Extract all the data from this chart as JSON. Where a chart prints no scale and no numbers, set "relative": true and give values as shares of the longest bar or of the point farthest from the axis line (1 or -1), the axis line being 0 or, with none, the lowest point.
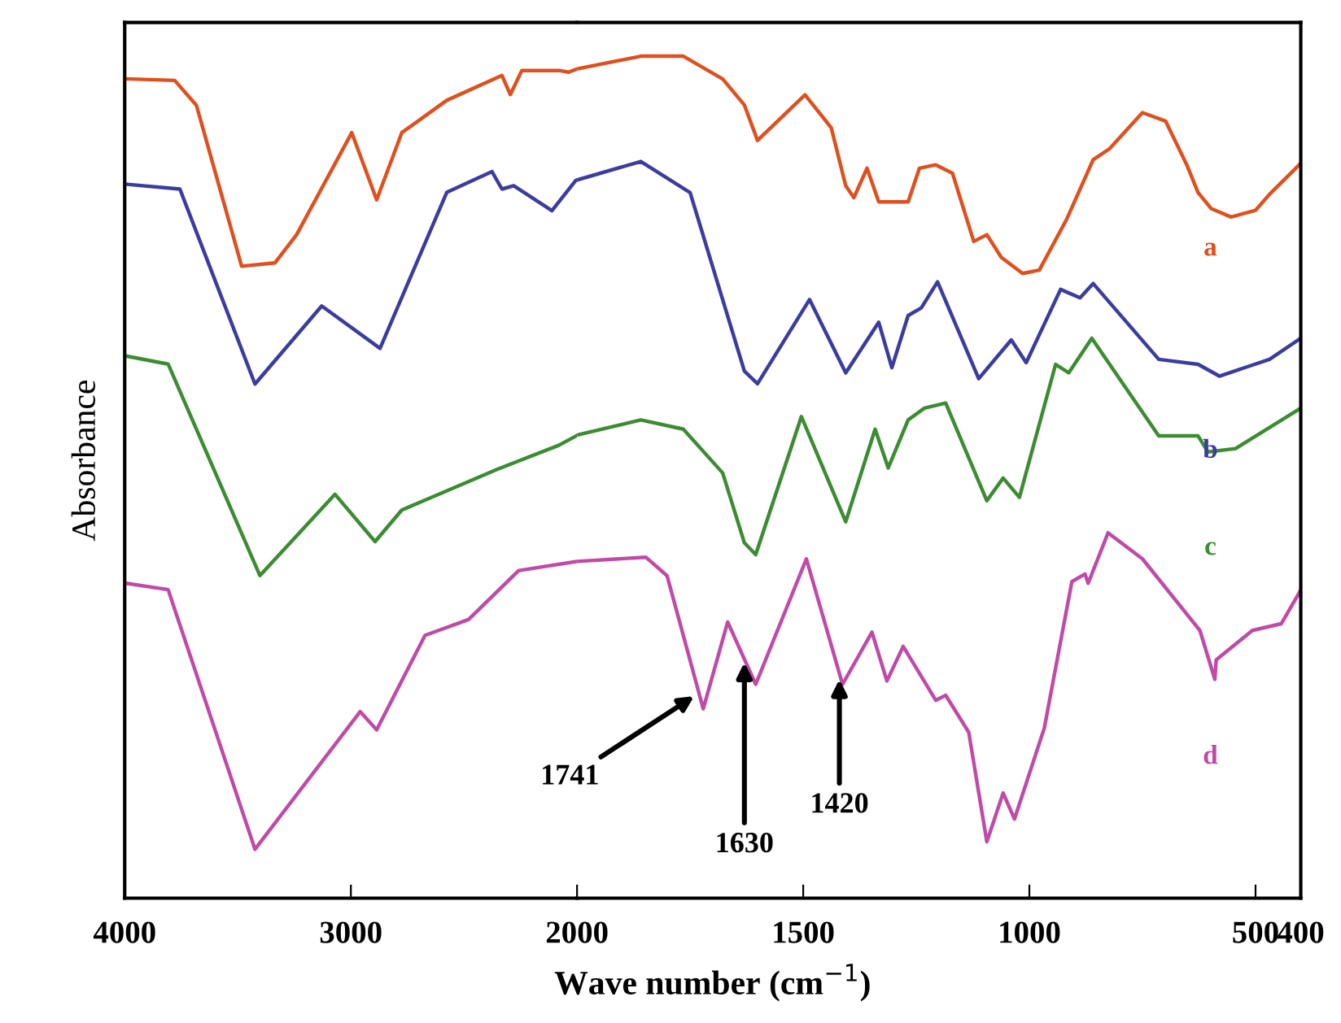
{
  "chart_data": [
    {
      "type": "line",
      "relative": true,
      "ylabel": "Absorbance",
      "xlim": [
        4000,
        2000
      ],
      "xticks": [
        4000,
        3000
      ],
      "grid": false,
      "line_style": "solid",
      "marker": "none",
      "series": [
        {
          "color": "#e0501e",
          "x": [
            4000,
            3779,
            3683,
            3483,
            3336,
            3240,
            2996,
            2886,
            2775,
            2576,
            2332,
            2295,
            2244,
            2081,
            2037,
            2000
          ],
          "values": [
            0.988,
            0.986,
            0.956,
            0.762,
            0.766,
            0.8,
            0.923,
            0.842,
            0.923,
            0.962,
            0.992,
            0.969,
            0.998,
            0.998,
            0.996,
            1.0
          ]
        },
        {
          "color": "#3c3ca0",
          "x": [
            4000,
            3756,
            3424,
            3129,
            2871,
            2576,
            2376,
            2332,
            2280,
            2111,
            2007,
            2000
          ],
          "values": [
            0.861,
            0.855,
            0.62,
            0.714,
            0.663,
            0.851,
            0.876,
            0.855,
            0.859,
            0.829,
            0.865,
            0.866
          ]
        },
        {
          "color": "#3c8c32",
          "x": [
            4000,
            3808,
            3402,
            3070,
            2893,
            2775,
            2354,
            2081,
            2000
          ],
          "values": [
            0.654,
            0.644,
            0.389,
            0.487,
            0.43,
            0.468,
            0.517,
            0.546,
            0.558
          ]
        },
        {
          "color": "#c04aa8",
          "x": [
            4000,
            3808,
            3424,
            2959,
            2886,
            2672,
            2480,
            2258,
            2000
          ],
          "values": [
            0.38,
            0.372,
            0.059,
            0.225,
            0.203,
            0.317,
            0.336,
            0.395,
            0.406
          ]
        }
      ]
    },
    {
      "type": "line",
      "relative": true,
      "xlabel": "Wave number (cm$^{−1}$)",
      "xlim": [
        2000,
        400
      ],
      "xticks": [
        2000,
        1500,
        1000,
        500,
        400
      ],
      "grid": false,
      "line_style": "solid",
      "marker": "none",
      "series": [
        {
          "name": "a",
          "color": "#e0501e",
          "x": [
            2000,
            1859,
            1765,
            1678,
            1630,
            1601,
            1496,
            1438,
            1406,
            1388,
            1359,
            1333,
            1268,
            1243,
            1207,
            1170,
            1123,
            1094,
            1062,
            1015,
            978,
            917,
            859,
            823,
            750,
            699,
            652,
            627,
            598,
            554,
            500,
            469,
            411,
            400
          ],
          "values": [
            0.985,
            1.0,
            1.0,
            0.973,
            0.942,
            0.9,
            0.954,
            0.915,
            0.846,
            0.832,
            0.867,
            0.827,
            0.827,
            0.867,
            0.871,
            0.861,
            0.78,
            0.788,
            0.761,
            0.742,
            0.746,
            0.807,
            0.877,
            0.89,
            0.933,
            0.923,
            0.871,
            0.838,
            0.819,
            0.809,
            0.817,
            0.836,
            0.867,
            0.873
          ]
        },
        {
          "name": "b",
          "color": "#3c3ca0",
          "x": [
            2000,
            1859,
            1750,
            1630,
            1601,
            1486,
            1406,
            1333,
            1304,
            1268,
            1239,
            1203,
            1112,
            1040,
            1007,
            931,
            888,
            859,
            714,
            627,
            580,
            469,
            400
          ],
          "values": [
            0.853,
            0.875,
            0.838,
            0.626,
            0.611,
            0.711,
            0.624,
            0.684,
            0.63,
            0.692,
            0.701,
            0.732,
            0.617,
            0.663,
            0.636,
            0.723,
            0.713,
            0.73,
            0.64,
            0.634,
            0.62,
            0.64,
            0.665
          ]
        },
        {
          "name": "c",
          "color": "#3c8c32",
          "x": [
            2000,
            1859,
            1765,
            1678,
            1630,
            1605,
            1504,
            1406,
            1341,
            1312,
            1268,
            1232,
            1185,
            1094,
            1058,
            1022,
            942,
            913,
            862,
            714,
            627,
            605,
            544,
            400
          ],
          "values": [
            0.55,
            0.568,
            0.557,
            0.505,
            0.422,
            0.408,
            0.572,
            0.447,
            0.557,
            0.511,
            0.568,
            0.582,
            0.588,
            0.472,
            0.499,
            0.476,
            0.634,
            0.624,
            0.665,
            0.549,
            0.549,
            0.53,
            0.534,
            0.582
          ]
        },
        {
          "name": "d",
          "color": "#c04aa8",
          "x": [
            2000,
            1848,
            1801,
            1721,
            1667,
            1605,
            1493,
            1413,
            1348,
            1315,
            1279,
            1207,
            1185,
            1134,
            1094,
            1058,
            1033,
            967,
            906,
            877,
            870,
            826,
            750,
            623,
            590,
            587,
            507,
            443,
            400
          ],
          "values": [
            0.4,
            0.405,
            0.383,
            0.225,
            0.328,
            0.254,
            0.403,
            0.254,
            0.316,
            0.258,
            0.299,
            0.235,
            0.241,
            0.197,
            0.067,
            0.125,
            0.094,
            0.202,
            0.376,
            0.385,
            0.374,
            0.434,
            0.403,
            0.318,
            0.26,
            0.283,
            0.318,
            0.326,
            0.366
          ]
        }
      ],
      "annotations": [
        {
          "text": "1741",
          "x": 1741,
          "y": 0.24
        },
        {
          "text": "1630",
          "x": 1630,
          "y": 0.28
        },
        {
          "text": "1420",
          "x": 1420,
          "y": 0.26
        }
      ]
    }
  ]
}
